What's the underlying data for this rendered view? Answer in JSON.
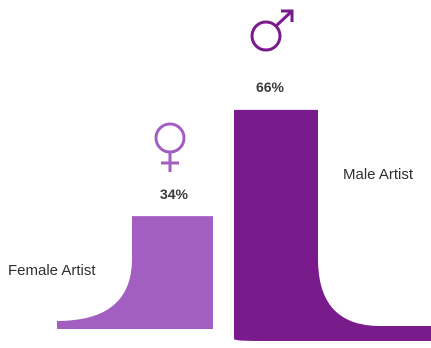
{
  "chart_data": {
    "type": "bar",
    "categories": [
      "Female Artist",
      "Male Artist"
    ],
    "values": [
      34,
      66
    ],
    "unit": "%",
    "ylim": [
      0,
      100
    ],
    "data_labels": [
      "34%",
      "66%"
    ],
    "icons": [
      "female-symbol-icon",
      "male-symbol-icon"
    ],
    "colors": [
      "#a25ec1",
      "#7a1b8c"
    ],
    "grid": false,
    "legend": "none"
  }
}
